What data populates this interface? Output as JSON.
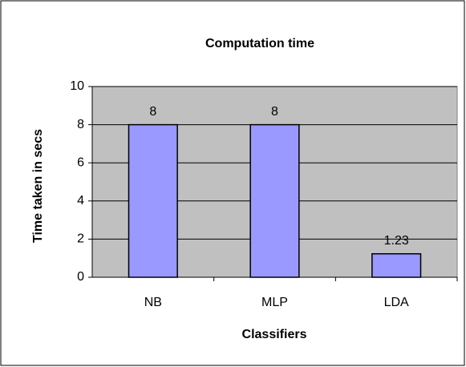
{
  "chart_data": {
    "type": "bar",
    "title": "Computation time",
    "x_label": "Classifiers",
    "y_label": "Time taken in secs",
    "categories": [
      "NB",
      "MLP",
      "LDA"
    ],
    "values": [
      8,
      8,
      1.23
    ],
    "color": "#9999ff",
    "ylim": [
      0,
      10
    ],
    "yticks": [
      0,
      2,
      4,
      6,
      8,
      10
    ],
    "grid": true
  }
}
